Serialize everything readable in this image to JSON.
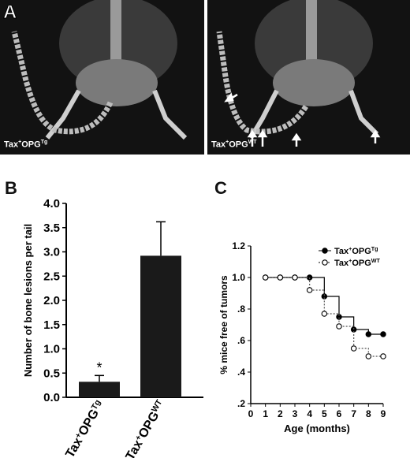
{
  "panel_labels": {
    "a": "A",
    "b": "B",
    "c": "C"
  },
  "xray": {
    "left": {
      "caption_base": "Tax",
      "caption_plus": "+",
      "caption_opg": "OPG",
      "caption_sup": "Tg"
    },
    "right": {
      "caption_base": "Tax",
      "caption_plus": "+",
      "caption_opg": "OPG",
      "caption_sup": "WT"
    }
  },
  "colors": {
    "bar": "#1a1a1a",
    "background": "#ffffff",
    "xray_bg": "#121212",
    "bone": "#d8d8d8"
  },
  "chart_data": [
    {
      "type": "bar",
      "categories": [
        {
          "base": "Tax",
          "plus": "+",
          "opg": "OPG",
          "sup": "Tg"
        },
        {
          "base": "Tax",
          "plus": "+",
          "opg": "OPG",
          "sup": "WT"
        }
      ],
      "values": [
        0.32,
        2.92
      ],
      "errors": [
        0.13,
        0.7
      ],
      "significance": [
        "*",
        ""
      ],
      "ylabel": "Number of bone lesions per tail",
      "ylim": [
        0,
        4.0
      ],
      "yticks": [
        "0.0",
        "0.5",
        "1.0",
        "1.5",
        "2.0",
        "2.5",
        "3.0",
        "3.5",
        "4.0"
      ],
      "grid": false
    },
    {
      "type": "line",
      "step": true,
      "xlabel": "Age (months)",
      "ylabel": "% mice free of tumors",
      "xlim": [
        0,
        9
      ],
      "ylim": [
        0.2,
        1.2
      ],
      "xticks": [
        "0",
        "1",
        "2",
        "3",
        "4",
        "5",
        "6",
        "7",
        "8",
        "9"
      ],
      "yticks": [
        ".2",
        ".4",
        ".6",
        ".8",
        "1.0",
        "1.2"
      ],
      "legend_position": "top-right",
      "grid": false,
      "series": [
        {
          "name_base": "Tax",
          "name_plus": "+",
          "name_opg": "OPG",
          "name_sup": "Tg",
          "marker": "filled",
          "x": [
            1,
            2,
            3,
            4,
            5,
            6,
            7,
            8,
            9
          ],
          "y": [
            1.0,
            1.0,
            1.0,
            1.0,
            0.88,
            0.75,
            0.67,
            0.64,
            0.64
          ]
        },
        {
          "name_base": "Tax",
          "name_plus": "+",
          "name_opg": "OPG",
          "name_sup": "WT",
          "marker": "open",
          "x": [
            1,
            2,
            3,
            4,
            5,
            6,
            7,
            8,
            9
          ],
          "y": [
            1.0,
            1.0,
            1.0,
            0.92,
            0.77,
            0.69,
            0.55,
            0.5,
            0.5
          ]
        }
      ]
    }
  ]
}
